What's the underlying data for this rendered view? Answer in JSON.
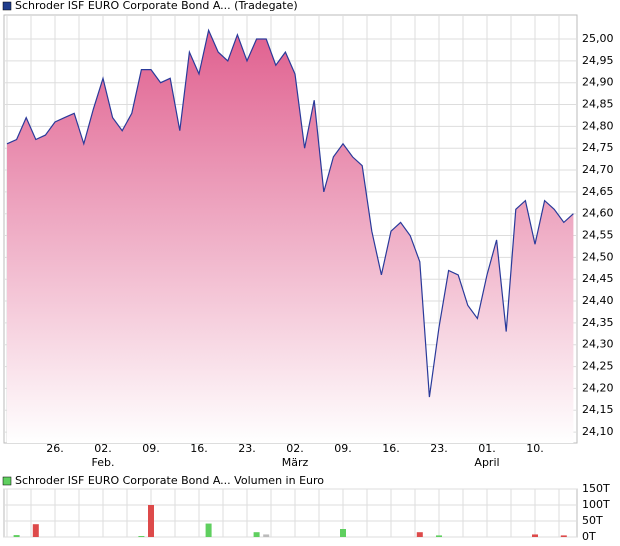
{
  "chart_data": [
    {
      "type": "area-line",
      "title": "Schroder ISF EURO Corporate Bond A... (Tradegate)",
      "color": "#2a3a9a",
      "legend_color": "#1f3c8c",
      "fill_top": "#e0608f",
      "fill_bottom": "#ffffff",
      "categories": [
        null,
        null,
        null,
        null,
        null,
        "26.",
        null,
        null,
        null,
        null,
        "02.",
        null,
        null,
        null,
        null,
        "09.",
        null,
        null,
        null,
        null,
        "16.",
        null,
        null,
        null,
        null,
        "23.",
        null,
        null,
        null,
        null,
        "02.",
        null,
        null,
        null,
        null,
        "09.",
        null,
        null,
        null,
        null,
        "16.",
        null,
        null,
        null,
        null,
        "23.",
        null,
        null,
        null,
        null,
        "01.",
        null,
        null,
        null,
        null,
        "10.",
        null,
        null,
        null,
        null
      ],
      "category_months": [
        null,
        null,
        null,
        null,
        null,
        null,
        null,
        null,
        null,
        null,
        "Feb.",
        null,
        null,
        null,
        null,
        null,
        null,
        null,
        null,
        null,
        null,
        null,
        null,
        null,
        null,
        null,
        null,
        null,
        null,
        null,
        "März",
        null,
        null,
        null,
        null,
        null,
        null,
        null,
        null,
        null,
        null,
        null,
        null,
        null,
        null,
        null,
        null,
        null,
        null,
        null,
        "April",
        null,
        null,
        null,
        null,
        null,
        null,
        null,
        null,
        null
      ],
      "values": [
        24.76,
        24.77,
        24.82,
        24.77,
        24.78,
        24.81,
        24.82,
        24.83,
        24.76,
        24.84,
        24.91,
        24.82,
        24.79,
        24.83,
        24.93,
        24.93,
        24.9,
        24.91,
        24.79,
        24.97,
        24.92,
        25.02,
        24.97,
        24.95,
        25.01,
        24.95,
        25.0,
        25.0,
        24.94,
        24.97,
        24.92,
        24.75,
        24.86,
        24.65,
        24.73,
        24.76,
        24.73,
        24.71,
        24.56,
        24.46,
        24.56,
        24.58,
        24.55,
        24.49,
        24.18,
        24.34,
        24.47,
        24.46,
        24.39,
        24.36,
        24.46,
        24.54,
        24.33,
        24.61,
        24.63,
        24.53,
        24.63,
        24.61,
        24.58,
        24.6
      ],
      "ylim": [
        24.075,
        25.055
      ],
      "yticks": [
        {
          "value": 24.1,
          "label": "24,10"
        },
        {
          "value": 24.15,
          "label": "24,15"
        },
        {
          "value": 24.2,
          "label": "24,20"
        },
        {
          "value": 24.25,
          "label": "24,25"
        },
        {
          "value": 24.3,
          "label": "24,30"
        },
        {
          "value": 24.35,
          "label": "24,35"
        },
        {
          "value": 24.4,
          "label": "24,40"
        },
        {
          "value": 24.45,
          "label": "24,45"
        },
        {
          "value": 24.5,
          "label": "24,50"
        },
        {
          "value": 24.55,
          "label": "24,55"
        },
        {
          "value": 24.6,
          "label": "24,60"
        },
        {
          "value": 24.65,
          "label": "24,65"
        },
        {
          "value": 24.7,
          "label": "24,70"
        },
        {
          "value": 24.75,
          "label": "24,75"
        },
        {
          "value": 24.8,
          "label": "24,80"
        },
        {
          "value": 24.85,
          "label": "24,85"
        },
        {
          "value": 24.9,
          "label": "24,90"
        },
        {
          "value": 24.95,
          "label": "24,95"
        },
        {
          "value": 25.0,
          "label": "25,00"
        }
      ],
      "grid": true
    },
    {
      "type": "bar",
      "title": "Schroder ISF EURO Corporate Bond A... Volumen in Euro",
      "legend_color": "#5fcf5f",
      "values": [
        null,
        6,
        null,
        40,
        null,
        null,
        null,
        null,
        null,
        null,
        null,
        null,
        null,
        null,
        3,
        100,
        null,
        null,
        null,
        null,
        null,
        42,
        null,
        null,
        null,
        null,
        15,
        8,
        null,
        null,
        null,
        null,
        null,
        null,
        null,
        25,
        null,
        null,
        null,
        null,
        null,
        null,
        null,
        15,
        null,
        5,
        null,
        null,
        null,
        null,
        null,
        null,
        null,
        null,
        null,
        8,
        null,
        null,
        5,
        null
      ],
      "colors": [
        null,
        "#5fcf5f",
        null,
        "#dd4a4a",
        null,
        null,
        null,
        null,
        null,
        null,
        null,
        null,
        null,
        null,
        "#5fcf5f",
        "#dd4a4a",
        null,
        null,
        null,
        null,
        null,
        "#5fcf5f",
        null,
        null,
        null,
        null,
        "#5fcf5f",
        "#bbbbbb",
        null,
        null,
        null,
        null,
        null,
        null,
        null,
        "#5fcf5f",
        null,
        null,
        null,
        null,
        null,
        null,
        null,
        "#dd4a4a",
        null,
        "#5fcf5f",
        null,
        null,
        null,
        null,
        null,
        null,
        null,
        null,
        null,
        "#dd4a4a",
        null,
        null,
        "#dd4a4a",
        null
      ],
      "ylim": [
        0,
        150
      ],
      "yticks": [
        {
          "value": 0,
          "label": "0T"
        },
        {
          "value": 50,
          "label": "50T"
        },
        {
          "value": 100,
          "label": "100T"
        },
        {
          "value": 150,
          "label": "150T"
        }
      ],
      "grid": true
    }
  ]
}
